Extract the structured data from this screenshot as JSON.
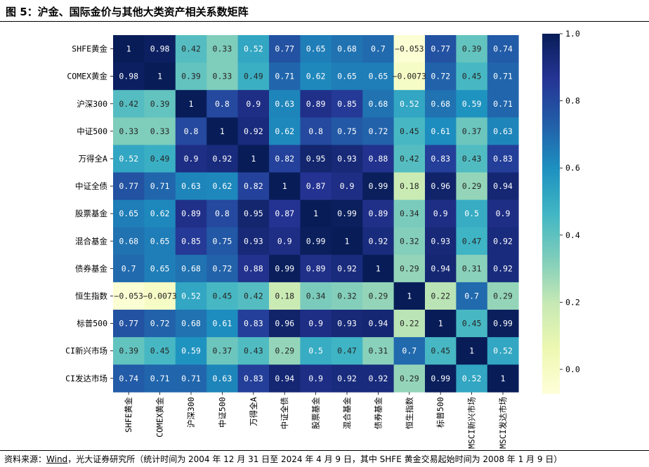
{
  "page": {
    "title": "图 5：沪金、国际金价与其他大类资产相关系数矩阵",
    "source_label": "资料来源：",
    "source_link": "Wind",
    "source_rest": "，光大证券研究所（统计时间为 2004 年 12 月 31 日至 2024 年 4 月 9 日，其中 SHFE 黄金交易起始时间为 2008 年 1 月 9 日）"
  },
  "chart_data": {
    "type": "heatmap",
    "title": "",
    "row_labels": [
      "SHFE黄金",
      "COMEX黄金",
      "沪深300",
      "中证500",
      "万得全A",
      "中证全债",
      "股票基金",
      "混合基金",
      "债券基金",
      "恒生指数",
      "标普500",
      "CI新兴市场",
      "CI发达市场"
    ],
    "col_labels": [
      "SHFE黄金",
      "COMEX黄金",
      "沪深300",
      "中证500",
      "万得全A",
      "中证全债",
      "股票基金",
      "混合基金",
      "债券基金",
      "恒生指数",
      "标普500",
      "MSCI新兴市场",
      "MSCI发达市场"
    ],
    "values": [
      [
        1,
        0.98,
        0.42,
        0.33,
        0.52,
        0.77,
        0.65,
        0.68,
        0.7,
        -0.053,
        0.77,
        0.39,
        0.74
      ],
      [
        0.98,
        1,
        0.39,
        0.33,
        0.49,
        0.71,
        0.62,
        0.65,
        0.65,
        -0.0073,
        0.72,
        0.45,
        0.71
      ],
      [
        0.42,
        0.39,
        1,
        0.8,
        0.9,
        0.63,
        0.89,
        0.85,
        0.68,
        0.52,
        0.68,
        0.59,
        0.71
      ],
      [
        0.33,
        0.33,
        0.8,
        1,
        0.92,
        0.62,
        0.8,
        0.75,
        0.72,
        0.45,
        0.61,
        0.37,
        0.63
      ],
      [
        0.52,
        0.49,
        0.9,
        0.92,
        1,
        0.82,
        0.95,
        0.93,
        0.88,
        0.42,
        0.83,
        0.43,
        0.83
      ],
      [
        0.77,
        0.71,
        0.63,
        0.62,
        0.82,
        1,
        0.87,
        0.9,
        0.99,
        0.18,
        0.96,
        0.29,
        0.94
      ],
      [
        0.65,
        0.62,
        0.89,
        0.8,
        0.95,
        0.87,
        1,
        0.99,
        0.89,
        0.34,
        0.9,
        0.5,
        0.9
      ],
      [
        0.68,
        0.65,
        0.85,
        0.75,
        0.93,
        0.9,
        0.99,
        1,
        0.92,
        0.32,
        0.93,
        0.47,
        0.92
      ],
      [
        0.7,
        0.65,
        0.68,
        0.72,
        0.88,
        0.99,
        0.89,
        0.92,
        1,
        0.29,
        0.94,
        0.31,
        0.92
      ],
      [
        -0.053,
        -0.0073,
        0.52,
        0.45,
        0.42,
        0.18,
        0.34,
        0.32,
        0.29,
        1,
        0.22,
        0.7,
        0.29
      ],
      [
        0.77,
        0.72,
        0.68,
        0.61,
        0.83,
        0.96,
        0.9,
        0.93,
        0.94,
        0.22,
        1,
        0.45,
        0.99
      ],
      [
        0.39,
        0.45,
        0.59,
        0.37,
        0.43,
        0.29,
        0.5,
        0.47,
        0.31,
        0.7,
        0.45,
        1,
        0.52
      ],
      [
        0.74,
        0.71,
        0.71,
        0.63,
        0.83,
        0.94,
        0.9,
        0.92,
        0.92,
        0.29,
        0.99,
        0.52,
        1
      ]
    ],
    "colorbar": {
      "range": [
        -0.0733,
        1.0
      ],
      "ticks": [
        0.0,
        0.2,
        0.4,
        0.6,
        0.8,
        1.0
      ],
      "tick_labels": [
        "0.0",
        "0.2",
        "0.4",
        "0.6",
        "0.8",
        "1.0"
      ],
      "colormap": "YlGnBu"
    },
    "colormap_stops": [
      "#ffffd9",
      "#edf8b1",
      "#c7e9b4",
      "#7fcdbb",
      "#41b6c4",
      "#1d91c0",
      "#225ea8",
      "#253494",
      "#081d58"
    ]
  }
}
